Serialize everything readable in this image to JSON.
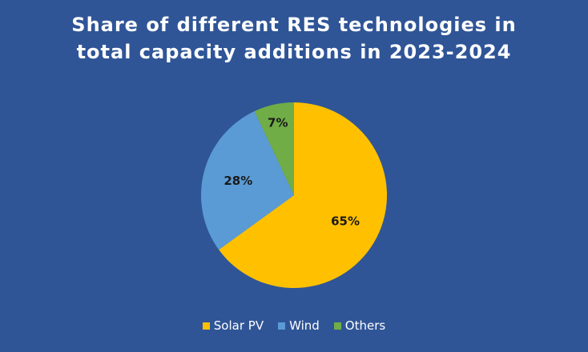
{
  "chart_data": {
    "type": "pie",
    "title_lines": [
      "Share of different RES technologies in",
      "total capacity additions in 2023-2024"
    ],
    "slices": [
      {
        "name": "Solar PV",
        "value": 65,
        "label": "65%",
        "color": "#ffc000"
      },
      {
        "name": "Wind",
        "value": 28,
        "label": "28%",
        "color": "#5b9bd5"
      },
      {
        "name": "Others",
        "value": 7,
        "label": "7%",
        "color": "#70ad47"
      }
    ],
    "legend_position": "bottom"
  }
}
